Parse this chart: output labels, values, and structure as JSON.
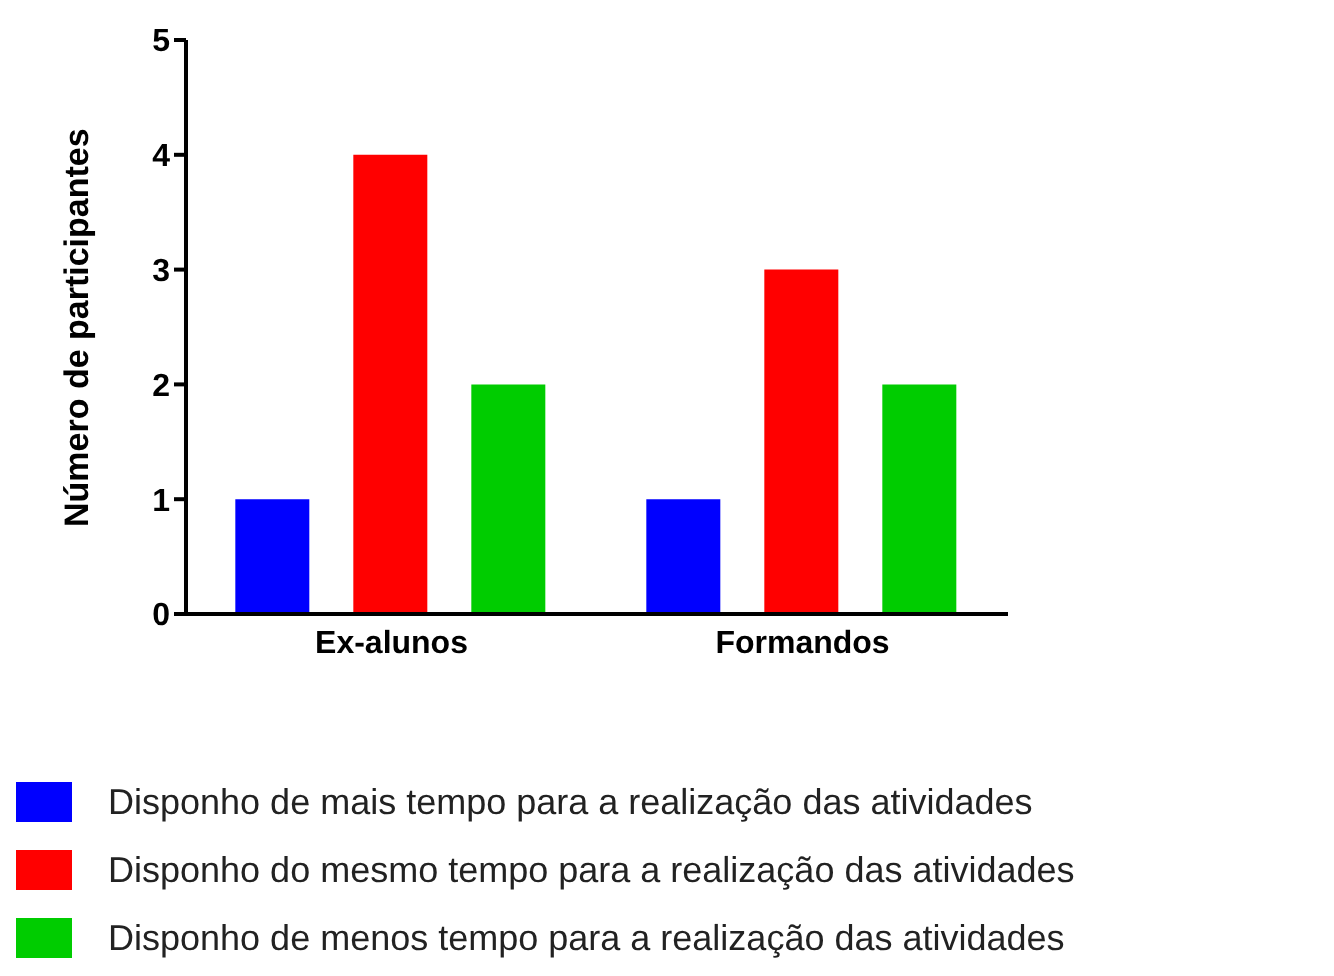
{
  "chart_data": {
    "type": "bar",
    "ylabel": "Número de participantes",
    "categories": [
      "Ex-alunos",
      "Formandos"
    ],
    "series": [
      {
        "name": "Disponho de mais tempo para a realização das atividades",
        "color": "#0000ff",
        "values": [
          1,
          1
        ]
      },
      {
        "name": "Disponho do mesmo tempo para a realização das atividades",
        "color": "#ff0000",
        "values": [
          4,
          3
        ]
      },
      {
        "name": "Disponho de menos tempo para a realização das atividades",
        "color": "#00cc00",
        "values": [
          2,
          2
        ]
      }
    ],
    "ylim": [
      0,
      5
    ],
    "yticks": [
      0,
      1,
      2,
      3,
      4,
      5
    ],
    "grid": false,
    "legend": "bottom"
  }
}
